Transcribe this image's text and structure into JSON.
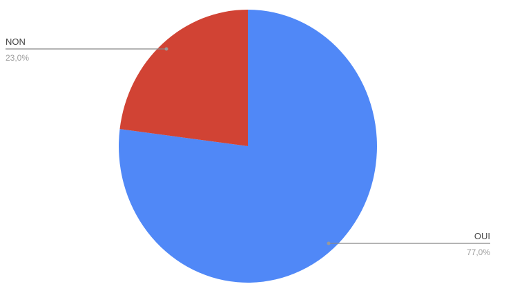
{
  "chart_data": {
    "type": "pie",
    "title": "",
    "slices": [
      {
        "label": "OUI",
        "value": 77.0,
        "percent_label": "77,0%",
        "color": "#5088f7"
      },
      {
        "label": "NON",
        "value": 23.0,
        "percent_label": "23,0%",
        "color": "#d14334"
      }
    ],
    "start_angle_deg": 0,
    "direction": "clockwise",
    "legend": "labels with leader lines"
  }
}
